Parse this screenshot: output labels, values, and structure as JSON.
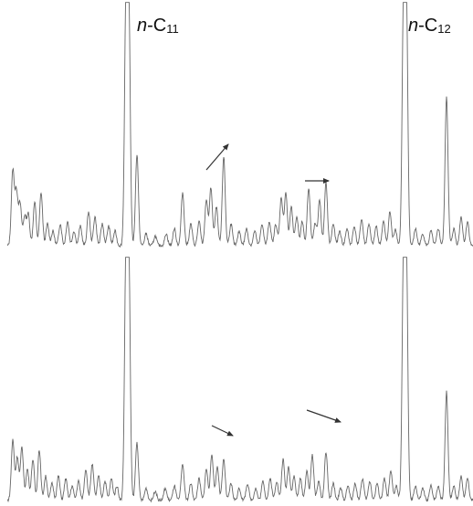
{
  "chart_data": {
    "type": "line",
    "title": "",
    "xlabel": "",
    "ylabel": "",
    "peak_labels": [
      {
        "prefix": "n",
        "sep": "-C",
        "sub": "11"
      },
      {
        "prefix": "n",
        "sep": "-C",
        "sub": "12"
      }
    ],
    "line_color": "#666666",
    "arrow_color": "#333333",
    "panels": [
      {
        "name": "",
        "peaks": [
          {
            "x": 14,
            "h": 0.31
          },
          {
            "x": 18,
            "h": 0.22
          },
          {
            "x": 22,
            "h": 0.17
          },
          {
            "x": 27,
            "h": 0.12
          },
          {
            "x": 31,
            "h": 0.13
          },
          {
            "x": 38,
            "h": 0.18
          },
          {
            "x": 45,
            "h": 0.22
          },
          {
            "x": 52,
            "h": 0.09
          },
          {
            "x": 58,
            "h": 0.06
          },
          {
            "x": 66,
            "h": 0.09
          },
          {
            "x": 74,
            "h": 0.1
          },
          {
            "x": 81,
            "h": 0.06
          },
          {
            "x": 88,
            "h": 0.08
          },
          {
            "x": 97,
            "h": 0.14
          },
          {
            "x": 104,
            "h": 0.12
          },
          {
            "x": 112,
            "h": 0.09
          },
          {
            "x": 119,
            "h": 0.08
          },
          {
            "x": 126,
            "h": 0.06
          },
          {
            "x": 138,
            "h": 1.0
          },
          {
            "x": 141,
            "h": 1.0
          },
          {
            "x": 150,
            "h": 0.38
          },
          {
            "x": 160,
            "h": 0.05
          },
          {
            "x": 170,
            "h": 0.04
          },
          {
            "x": 182,
            "h": 0.05
          },
          {
            "x": 191,
            "h": 0.07
          },
          {
            "x": 200,
            "h": 0.22
          },
          {
            "x": 209,
            "h": 0.09
          },
          {
            "x": 218,
            "h": 0.1
          },
          {
            "x": 226,
            "h": 0.19
          },
          {
            "x": 231,
            "h": 0.24
          },
          {
            "x": 237,
            "h": 0.16
          },
          {
            "x": 245,
            "h": 0.37
          },
          {
            "x": 253,
            "h": 0.09
          },
          {
            "x": 262,
            "h": 0.06
          },
          {
            "x": 270,
            "h": 0.07
          },
          {
            "x": 279,
            "h": 0.06
          },
          {
            "x": 287,
            "h": 0.09
          },
          {
            "x": 295,
            "h": 0.1
          },
          {
            "x": 302,
            "h": 0.09
          },
          {
            "x": 308,
            "h": 0.2
          },
          {
            "x": 313,
            "h": 0.22
          },
          {
            "x": 319,
            "h": 0.16
          },
          {
            "x": 325,
            "h": 0.12
          },
          {
            "x": 331,
            "h": 0.1
          },
          {
            "x": 338,
            "h": 0.24
          },
          {
            "x": 345,
            "h": 0.09
          },
          {
            "x": 350,
            "h": 0.19
          },
          {
            "x": 357,
            "h": 0.26
          },
          {
            "x": 365,
            "h": 0.09
          },
          {
            "x": 372,
            "h": 0.06
          },
          {
            "x": 380,
            "h": 0.07
          },
          {
            "x": 388,
            "h": 0.08
          },
          {
            "x": 396,
            "h": 0.11
          },
          {
            "x": 404,
            "h": 0.09
          },
          {
            "x": 412,
            "h": 0.08
          },
          {
            "x": 420,
            "h": 0.1
          },
          {
            "x": 427,
            "h": 0.14
          },
          {
            "x": 433,
            "h": 0.07
          },
          {
            "x": 442,
            "h": 1.0
          },
          {
            "x": 445,
            "h": 1.0
          },
          {
            "x": 455,
            "h": 0.07
          },
          {
            "x": 463,
            "h": 0.05
          },
          {
            "x": 472,
            "h": 0.06
          },
          {
            "x": 480,
            "h": 0.07
          },
          {
            "x": 489,
            "h": 0.62
          },
          {
            "x": 497,
            "h": 0.07
          },
          {
            "x": 505,
            "h": 0.12
          },
          {
            "x": 512,
            "h": 0.1
          }
        ],
        "arrows": [
          {
            "from": [
              226,
              186
            ],
            "to": [
              250,
              158
            ]
          },
          {
            "from": [
              334,
              198
            ],
            "to": [
              360,
              198
            ]
          }
        ]
      },
      {
        "name": "",
        "peaks": [
          {
            "x": 14,
            "h": 0.25
          },
          {
            "x": 19,
            "h": 0.18
          },
          {
            "x": 24,
            "h": 0.22
          },
          {
            "x": 30,
            "h": 0.13
          },
          {
            "x": 36,
            "h": 0.17
          },
          {
            "x": 43,
            "h": 0.21
          },
          {
            "x": 50,
            "h": 0.1
          },
          {
            "x": 57,
            "h": 0.07
          },
          {
            "x": 64,
            "h": 0.1
          },
          {
            "x": 72,
            "h": 0.09
          },
          {
            "x": 79,
            "h": 0.06
          },
          {
            "x": 86,
            "h": 0.08
          },
          {
            "x": 94,
            "h": 0.13
          },
          {
            "x": 101,
            "h": 0.15
          },
          {
            "x": 108,
            "h": 0.1
          },
          {
            "x": 115,
            "h": 0.08
          },
          {
            "x": 122,
            "h": 0.09
          },
          {
            "x": 128,
            "h": 0.06
          },
          {
            "x": 138,
            "h": 1.0
          },
          {
            "x": 141,
            "h": 1.0
          },
          {
            "x": 150,
            "h": 0.24
          },
          {
            "x": 160,
            "h": 0.05
          },
          {
            "x": 170,
            "h": 0.04
          },
          {
            "x": 181,
            "h": 0.05
          },
          {
            "x": 191,
            "h": 0.06
          },
          {
            "x": 200,
            "h": 0.15
          },
          {
            "x": 209,
            "h": 0.07
          },
          {
            "x": 218,
            "h": 0.09
          },
          {
            "x": 226,
            "h": 0.13
          },
          {
            "x": 232,
            "h": 0.19
          },
          {
            "x": 238,
            "h": 0.14
          },
          {
            "x": 245,
            "h": 0.17
          },
          {
            "x": 253,
            "h": 0.07
          },
          {
            "x": 262,
            "h": 0.05
          },
          {
            "x": 271,
            "h": 0.07
          },
          {
            "x": 280,
            "h": 0.05
          },
          {
            "x": 288,
            "h": 0.08
          },
          {
            "x": 296,
            "h": 0.09
          },
          {
            "x": 303,
            "h": 0.08
          },
          {
            "x": 310,
            "h": 0.17
          },
          {
            "x": 316,
            "h": 0.14
          },
          {
            "x": 322,
            "h": 0.1
          },
          {
            "x": 329,
            "h": 0.09
          },
          {
            "x": 336,
            "h": 0.12
          },
          {
            "x": 342,
            "h": 0.19
          },
          {
            "x": 349,
            "h": 0.08
          },
          {
            "x": 357,
            "h": 0.2
          },
          {
            "x": 365,
            "h": 0.07
          },
          {
            "x": 373,
            "h": 0.05
          },
          {
            "x": 381,
            "h": 0.06
          },
          {
            "x": 389,
            "h": 0.07
          },
          {
            "x": 397,
            "h": 0.09
          },
          {
            "x": 405,
            "h": 0.08
          },
          {
            "x": 413,
            "h": 0.07
          },
          {
            "x": 421,
            "h": 0.09
          },
          {
            "x": 428,
            "h": 0.12
          },
          {
            "x": 434,
            "h": 0.06
          },
          {
            "x": 442,
            "h": 1.0
          },
          {
            "x": 445,
            "h": 1.0
          },
          {
            "x": 455,
            "h": 0.06
          },
          {
            "x": 463,
            "h": 0.05
          },
          {
            "x": 472,
            "h": 0.06
          },
          {
            "x": 480,
            "h": 0.06
          },
          {
            "x": 489,
            "h": 0.45
          },
          {
            "x": 497,
            "h": 0.06
          },
          {
            "x": 505,
            "h": 0.1
          },
          {
            "x": 512,
            "h": 0.09
          }
        ],
        "arrows": [
          {
            "from": [
              232,
              466
            ],
            "to": [
              255,
              477
            ]
          },
          {
            "from": [
              336,
              449
            ],
            "to": [
              373,
              462
            ]
          }
        ]
      }
    ]
  }
}
